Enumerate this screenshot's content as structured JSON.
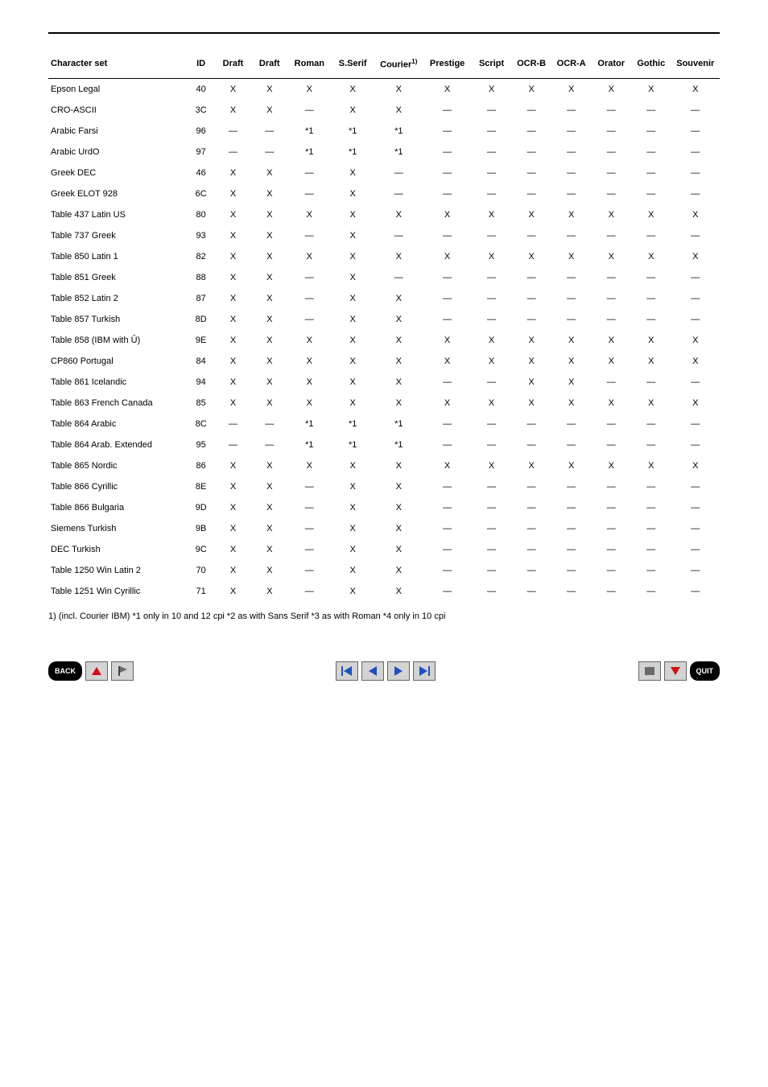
{
  "table": {
    "columns": [
      "Character set",
      "ID",
      "Draft",
      "Draft",
      "Roman",
      "S.Serif",
      "Courier",
      "Prestige",
      "Script",
      "OCR-B",
      "OCR-A",
      "Orator",
      "Gothic",
      "Souvenir"
    ],
    "courier_sup": "1)",
    "rows": [
      {
        "name": "Epson Legal",
        "id": "40",
        "cells": [
          "X",
          "X",
          "X",
          "X",
          "X",
          "X",
          "X",
          "X",
          "X",
          "X",
          "X",
          "X"
        ]
      },
      {
        "name": "CRO-ASCII",
        "id": "3C",
        "cells": [
          "X",
          "X",
          "—",
          "X",
          "X",
          "—",
          "—",
          "—",
          "—",
          "—",
          "—",
          "—"
        ]
      },
      {
        "name": "Arabic Farsi",
        "id": "96",
        "cells": [
          "—",
          "—",
          "*1",
          "*1",
          "*1",
          "—",
          "—",
          "—",
          "—",
          "—",
          "—",
          "—"
        ]
      },
      {
        "name": "Arabic UrdO",
        "id": "97",
        "cells": [
          "—",
          "—",
          "*1",
          "*1",
          "*1",
          "—",
          "—",
          "—",
          "—",
          "—",
          "—",
          "—"
        ]
      },
      {
        "name": "Greek DEC",
        "id": "46",
        "cells": [
          "X",
          "X",
          "—",
          "X",
          "—",
          "—",
          "—",
          "—",
          "—",
          "—",
          "—",
          "—"
        ]
      },
      {
        "name": "Greek ELOT 928",
        "id": "6C",
        "cells": [
          "X",
          "X",
          "—",
          "X",
          "—",
          "—",
          "—",
          "—",
          "—",
          "—",
          "—",
          "—"
        ]
      },
      {
        "name": "Table 437 Latin US",
        "id": "80",
        "cells": [
          "X",
          "X",
          "X",
          "X",
          "X",
          "X",
          "X",
          "X",
          "X",
          "X",
          "X",
          "X"
        ]
      },
      {
        "name": "Table 737 Greek",
        "id": "93",
        "cells": [
          "X",
          "X",
          "—",
          "X",
          "—",
          "—",
          "—",
          "—",
          "—",
          "—",
          "—",
          "—"
        ]
      },
      {
        "name": "Table 850 Latin 1",
        "id": "82",
        "cells": [
          "X",
          "X",
          "X",
          "X",
          "X",
          "X",
          "X",
          "X",
          "X",
          "X",
          "X",
          "X"
        ]
      },
      {
        "name": "Table 851 Greek",
        "id": "88",
        "cells": [
          "X",
          "X",
          "—",
          "X",
          "—",
          "—",
          "—",
          "—",
          "—",
          "—",
          "—",
          "—"
        ]
      },
      {
        "name": "Table 852 Latin 2",
        "id": "87",
        "cells": [
          "X",
          "X",
          "—",
          "X",
          "X",
          "—",
          "—",
          "—",
          "—",
          "—",
          "—",
          "—"
        ]
      },
      {
        "name": "Table 857 Turkish",
        "id": "8D",
        "cells": [
          "X",
          "X",
          "—",
          "X",
          "X",
          "—",
          "—",
          "—",
          "—",
          "—",
          "—",
          "—"
        ]
      },
      {
        "name": "Table 858 (IBM with Û)",
        "id": "9E",
        "cells": [
          "X",
          "X",
          "X",
          "X",
          "X",
          "X",
          "X",
          "X",
          "X",
          "X",
          "X",
          "X"
        ]
      },
      {
        "name": "CP860 Portugal",
        "id": "84",
        "cells": [
          "X",
          "X",
          "X",
          "X",
          "X",
          "X",
          "X",
          "X",
          "X",
          "X",
          "X",
          "X"
        ]
      },
      {
        "name": "Table 861 Icelandic",
        "id": "94",
        "cells": [
          "X",
          "X",
          "X",
          "X",
          "X",
          "—",
          "—",
          "X",
          "X",
          "—",
          "—",
          "—"
        ]
      },
      {
        "name": "Table 863 French Canada",
        "id": "85",
        "cells": [
          "X",
          "X",
          "X",
          "X",
          "X",
          "X",
          "X",
          "X",
          "X",
          "X",
          "X",
          "X"
        ]
      },
      {
        "name": "Table 864 Arabic",
        "id": "8C",
        "cells": [
          "—",
          "—",
          "*1",
          "*1",
          "*1",
          "—",
          "—",
          "—",
          "—",
          "—",
          "—",
          "—"
        ]
      },
      {
        "name": "Table 864 Arab. Extended",
        "id": "95",
        "cells": [
          "—",
          "—",
          "*1",
          "*1",
          "*1",
          "—",
          "—",
          "—",
          "—",
          "—",
          "—",
          "—"
        ]
      },
      {
        "name": "Table 865 Nordic",
        "id": "86",
        "cells": [
          "X",
          "X",
          "X",
          "X",
          "X",
          "X",
          "X",
          "X",
          "X",
          "X",
          "X",
          "X"
        ]
      },
      {
        "name": "Table 866 Cyrillic",
        "id": "8E",
        "cells": [
          "X",
          "X",
          "—",
          "X",
          "X",
          "—",
          "—",
          "—",
          "—",
          "—",
          "—",
          "—"
        ]
      },
      {
        "name": "Table 866 Bulgaria",
        "id": "9D",
        "cells": [
          "X",
          "X",
          "—",
          "X",
          "X",
          "—",
          "—",
          "—",
          "—",
          "—",
          "—",
          "—"
        ]
      },
      {
        "name": "Siemens Turkish",
        "id": "9B",
        "cells": [
          "X",
          "X",
          "—",
          "X",
          "X",
          "—",
          "—",
          "—",
          "—",
          "—",
          "—",
          "—"
        ]
      },
      {
        "name": "DEC Turkish",
        "id": "9C",
        "cells": [
          "X",
          "X",
          "—",
          "X",
          "X",
          "—",
          "—",
          "—",
          "—",
          "—",
          "—",
          "—"
        ]
      },
      {
        "name": "Table 1250 Win Latin 2",
        "id": "70",
        "cells": [
          "X",
          "X",
          "—",
          "X",
          "X",
          "—",
          "—",
          "—",
          "—",
          "—",
          "—",
          "—"
        ]
      },
      {
        "name": "Table 1251 Win Cyrillic",
        "id": "71",
        "cells": [
          "X",
          "X",
          "—",
          "X",
          "X",
          "—",
          "—",
          "—",
          "—",
          "—",
          "—",
          "—"
        ]
      }
    ],
    "col_widths": [
      "160px",
      "32px",
      "42px",
      "42px",
      "50px",
      "50px",
      "56px",
      "56px",
      "46px",
      "46px",
      "46px",
      "46px",
      "46px",
      "56px"
    ]
  },
  "footnote": "1) (incl. Courier IBM) *1 only in 10 and 12 cpi *2 as with Sans Serif *3 as with Roman *4 only in 10 cpi",
  "nav": {
    "back_label": "BACK",
    "quit_label": "QUIT",
    "colors": {
      "btn_bg": "#d3d3d3",
      "btn_border": "#666666",
      "label_bg": "#000000",
      "label_fg": "#ffffff",
      "arrow_red": "#d01010",
      "arrow_blue": "#2050c0",
      "arrow_gray": "#6a6a6a"
    }
  }
}
